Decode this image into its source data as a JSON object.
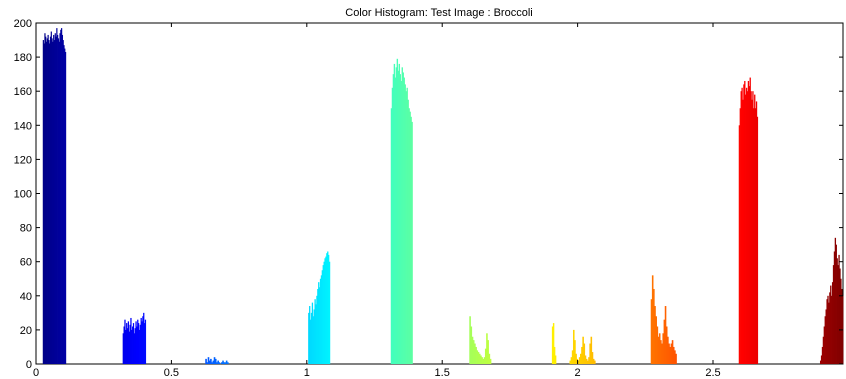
{
  "chart_data": {
    "type": "bar",
    "title": "Color Histogram: Test Image : Broccoli",
    "xlabel": "",
    "ylabel": "",
    "xlim": [
      0,
      2.98
    ],
    "ylim": [
      0,
      200
    ],
    "xticks": [
      0,
      0.5,
      1,
      1.5,
      2,
      2.5
    ],
    "xtick_labels": [
      "0",
      "0.5",
      "1",
      "1.5",
      "2",
      "2.5"
    ],
    "yticks": [
      0,
      20,
      40,
      60,
      80,
      100,
      120,
      140,
      160,
      180,
      200
    ],
    "ytick_labels": [
      "0",
      "20",
      "40",
      "60",
      "80",
      "100",
      "120",
      "140",
      "160",
      "180",
      "200"
    ],
    "grid": false,
    "legend": "none",
    "bin_width": 0.0046,
    "clusters": [
      {
        "x_start": 0.025,
        "x_end": 0.11,
        "values": [
          190,
          188,
          194,
          192,
          189,
          191,
          193,
          190,
          188,
          192,
          195,
          191,
          189,
          193,
          190,
          194,
          192,
          197,
          193,
          191,
          189,
          194,
          196,
          197,
          193,
          190,
          187,
          185,
          183
        ]
      },
      {
        "x_start": 0.32,
        "x_end": 0.405,
        "values": [
          18,
          22,
          26,
          20,
          24,
          21,
          25,
          19,
          23,
          27,
          20,
          22,
          24,
          18,
          21,
          25,
          22,
          26,
          24,
          20,
          23,
          27,
          25,
          28,
          30,
          24,
          26
        ]
      },
      {
        "x_start": 0.625,
        "x_end": 0.71,
        "values": [
          3,
          1,
          4,
          2,
          3,
          1,
          2,
          4,
          3,
          1,
          2,
          1,
          0,
          1,
          2,
          1,
          1,
          2,
          1
        ]
      },
      {
        "x_start": 1.005,
        "x_end": 1.085,
        "values": [
          30,
          34,
          26,
          30,
          36,
          28,
          32,
          38,
          35,
          40,
          44,
          48,
          45,
          50,
          52,
          55,
          58,
          60,
          62,
          63,
          65,
          66,
          64,
          60
        ]
      },
      {
        "x_start": 1.31,
        "x_end": 1.39,
        "values": [
          150,
          162,
          170,
          176,
          168,
          174,
          179,
          172,
          176,
          170,
          166,
          174,
          171,
          168,
          164,
          160,
          162,
          155,
          150,
          148,
          145,
          142
        ]
      },
      {
        "x_start": 1.6,
        "x_end": 1.68,
        "values": [
          28,
          22,
          16,
          14,
          12,
          10,
          8,
          7,
          6,
          5,
          4,
          3,
          4,
          9,
          18,
          14,
          6,
          3
        ]
      },
      {
        "x_start": 1.905,
        "x_end": 1.92,
        "values": [
          22,
          24,
          10,
          5
        ]
      },
      {
        "x_start": 1.97,
        "x_end": 2.065,
        "values": [
          2,
          4,
          8,
          20,
          14,
          6,
          3,
          2,
          4,
          6,
          10,
          16,
          12,
          5,
          3,
          2,
          4,
          12,
          16,
          7,
          3,
          2
        ]
      },
      {
        "x_start": 2.27,
        "x_end": 2.365,
        "values": [
          38,
          52,
          44,
          34,
          28,
          22,
          16,
          18,
          14,
          12,
          18,
          26,
          34,
          22,
          16,
          12,
          10,
          12,
          14,
          10,
          8,
          6
        ]
      },
      {
        "x_start": 2.595,
        "x_end": 2.665,
        "values": [
          140,
          150,
          160,
          162,
          155,
          164,
          166,
          158,
          162,
          160,
          166,
          163,
          168,
          160,
          155,
          160,
          150,
          158,
          150,
          154,
          145
        ]
      },
      {
        "x_start": 2.895,
        "x_end": 2.98,
        "values": [
          2,
          5,
          10,
          16,
          22,
          28,
          32,
          38,
          40,
          36,
          42,
          46,
          40,
          48,
          58,
          66,
          74,
          70,
          62,
          58,
          64,
          56,
          50,
          44,
          40
        ]
      }
    ]
  }
}
